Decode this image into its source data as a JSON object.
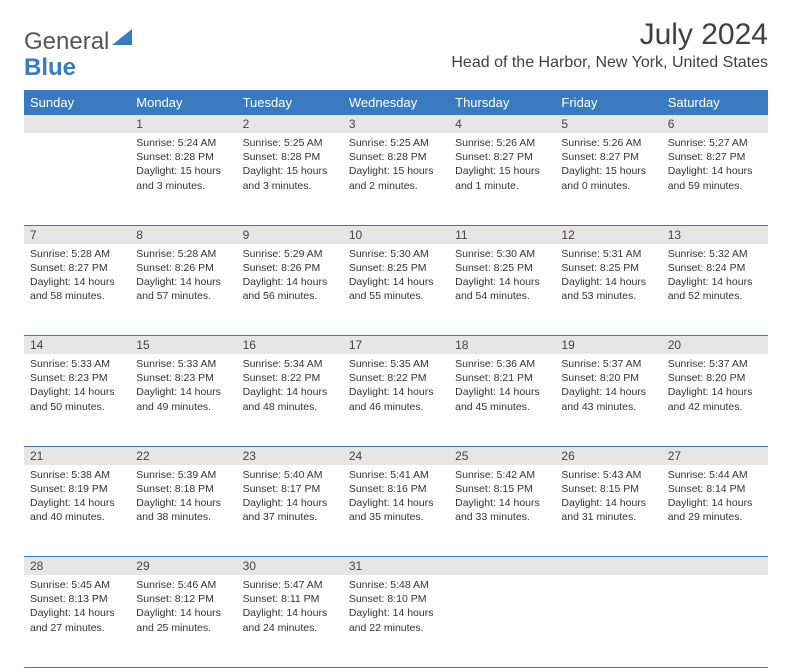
{
  "logo": {
    "part1": "General",
    "part2": "Blue"
  },
  "header": {
    "month_title": "July 2024",
    "location": "Head of the Harbor, New York, United States"
  },
  "colors": {
    "header_bg": "#3a7bbf",
    "header_text": "#ffffff",
    "daynum_bg": "#e6e6e6",
    "row_border": "#3a7bbf",
    "text": "#333333",
    "background": "#ffffff"
  },
  "weekdays": [
    "Sunday",
    "Monday",
    "Tuesday",
    "Wednesday",
    "Thursday",
    "Friday",
    "Saturday"
  ],
  "weeks": [
    {
      "nums": [
        "",
        "1",
        "2",
        "3",
        "4",
        "5",
        "6"
      ],
      "cells": [
        null,
        {
          "sunrise": "Sunrise: 5:24 AM",
          "sunset": "Sunset: 8:28 PM",
          "daylight": "Daylight: 15 hours and 3 minutes."
        },
        {
          "sunrise": "Sunrise: 5:25 AM",
          "sunset": "Sunset: 8:28 PM",
          "daylight": "Daylight: 15 hours and 3 minutes."
        },
        {
          "sunrise": "Sunrise: 5:25 AM",
          "sunset": "Sunset: 8:28 PM",
          "daylight": "Daylight: 15 hours and 2 minutes."
        },
        {
          "sunrise": "Sunrise: 5:26 AM",
          "sunset": "Sunset: 8:27 PM",
          "daylight": "Daylight: 15 hours and 1 minute."
        },
        {
          "sunrise": "Sunrise: 5:26 AM",
          "sunset": "Sunset: 8:27 PM",
          "daylight": "Daylight: 15 hours and 0 minutes."
        },
        {
          "sunrise": "Sunrise: 5:27 AM",
          "sunset": "Sunset: 8:27 PM",
          "daylight": "Daylight: 14 hours and 59 minutes."
        }
      ]
    },
    {
      "nums": [
        "7",
        "8",
        "9",
        "10",
        "11",
        "12",
        "13"
      ],
      "cells": [
        {
          "sunrise": "Sunrise: 5:28 AM",
          "sunset": "Sunset: 8:27 PM",
          "daylight": "Daylight: 14 hours and 58 minutes."
        },
        {
          "sunrise": "Sunrise: 5:28 AM",
          "sunset": "Sunset: 8:26 PM",
          "daylight": "Daylight: 14 hours and 57 minutes."
        },
        {
          "sunrise": "Sunrise: 5:29 AM",
          "sunset": "Sunset: 8:26 PM",
          "daylight": "Daylight: 14 hours and 56 minutes."
        },
        {
          "sunrise": "Sunrise: 5:30 AM",
          "sunset": "Sunset: 8:25 PM",
          "daylight": "Daylight: 14 hours and 55 minutes."
        },
        {
          "sunrise": "Sunrise: 5:30 AM",
          "sunset": "Sunset: 8:25 PM",
          "daylight": "Daylight: 14 hours and 54 minutes."
        },
        {
          "sunrise": "Sunrise: 5:31 AM",
          "sunset": "Sunset: 8:25 PM",
          "daylight": "Daylight: 14 hours and 53 minutes."
        },
        {
          "sunrise": "Sunrise: 5:32 AM",
          "sunset": "Sunset: 8:24 PM",
          "daylight": "Daylight: 14 hours and 52 minutes."
        }
      ]
    },
    {
      "nums": [
        "14",
        "15",
        "16",
        "17",
        "18",
        "19",
        "20"
      ],
      "cells": [
        {
          "sunrise": "Sunrise: 5:33 AM",
          "sunset": "Sunset: 8:23 PM",
          "daylight": "Daylight: 14 hours and 50 minutes."
        },
        {
          "sunrise": "Sunrise: 5:33 AM",
          "sunset": "Sunset: 8:23 PM",
          "daylight": "Daylight: 14 hours and 49 minutes."
        },
        {
          "sunrise": "Sunrise: 5:34 AM",
          "sunset": "Sunset: 8:22 PM",
          "daylight": "Daylight: 14 hours and 48 minutes."
        },
        {
          "sunrise": "Sunrise: 5:35 AM",
          "sunset": "Sunset: 8:22 PM",
          "daylight": "Daylight: 14 hours and 46 minutes."
        },
        {
          "sunrise": "Sunrise: 5:36 AM",
          "sunset": "Sunset: 8:21 PM",
          "daylight": "Daylight: 14 hours and 45 minutes."
        },
        {
          "sunrise": "Sunrise: 5:37 AM",
          "sunset": "Sunset: 8:20 PM",
          "daylight": "Daylight: 14 hours and 43 minutes."
        },
        {
          "sunrise": "Sunrise: 5:37 AM",
          "sunset": "Sunset: 8:20 PM",
          "daylight": "Daylight: 14 hours and 42 minutes."
        }
      ]
    },
    {
      "nums": [
        "21",
        "22",
        "23",
        "24",
        "25",
        "26",
        "27"
      ],
      "cells": [
        {
          "sunrise": "Sunrise: 5:38 AM",
          "sunset": "Sunset: 8:19 PM",
          "daylight": "Daylight: 14 hours and 40 minutes."
        },
        {
          "sunrise": "Sunrise: 5:39 AM",
          "sunset": "Sunset: 8:18 PM",
          "daylight": "Daylight: 14 hours and 38 minutes."
        },
        {
          "sunrise": "Sunrise: 5:40 AM",
          "sunset": "Sunset: 8:17 PM",
          "daylight": "Daylight: 14 hours and 37 minutes."
        },
        {
          "sunrise": "Sunrise: 5:41 AM",
          "sunset": "Sunset: 8:16 PM",
          "daylight": "Daylight: 14 hours and 35 minutes."
        },
        {
          "sunrise": "Sunrise: 5:42 AM",
          "sunset": "Sunset: 8:15 PM",
          "daylight": "Daylight: 14 hours and 33 minutes."
        },
        {
          "sunrise": "Sunrise: 5:43 AM",
          "sunset": "Sunset: 8:15 PM",
          "daylight": "Daylight: 14 hours and 31 minutes."
        },
        {
          "sunrise": "Sunrise: 5:44 AM",
          "sunset": "Sunset: 8:14 PM",
          "daylight": "Daylight: 14 hours and 29 minutes."
        }
      ]
    },
    {
      "nums": [
        "28",
        "29",
        "30",
        "31",
        "",
        "",
        ""
      ],
      "cells": [
        {
          "sunrise": "Sunrise: 5:45 AM",
          "sunset": "Sunset: 8:13 PM",
          "daylight": "Daylight: 14 hours and 27 minutes."
        },
        {
          "sunrise": "Sunrise: 5:46 AM",
          "sunset": "Sunset: 8:12 PM",
          "daylight": "Daylight: 14 hours and 25 minutes."
        },
        {
          "sunrise": "Sunrise: 5:47 AM",
          "sunset": "Sunset: 8:11 PM",
          "daylight": "Daylight: 14 hours and 24 minutes."
        },
        {
          "sunrise": "Sunrise: 5:48 AM",
          "sunset": "Sunset: 8:10 PM",
          "daylight": "Daylight: 14 hours and 22 minutes."
        },
        null,
        null,
        null
      ]
    }
  ]
}
